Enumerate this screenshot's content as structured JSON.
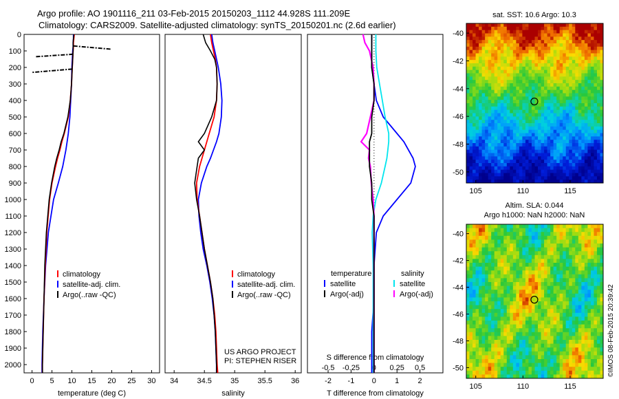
{
  "header": {
    "line1": "Argo profile: AO 1901116_211 03-Feb-2015 20150203_1112 44.928S 111.209E",
    "line2": "Climatology: CARS2009. Satellite-adjusted climatology: synTS_20150201.nc (2.6d earlier)"
  },
  "colors": {
    "climatology": "#ff0000",
    "satellite": "#0000ff",
    "argo": "#000000",
    "sat_salinity": "#00e5ee",
    "argo_salinity": "#ff00ff"
  },
  "chart_data": [
    {
      "type": "line",
      "panel": "temperature",
      "xlabel": "temperature (deg C)",
      "ylabel": "",
      "xlim": [
        -2,
        32
      ],
      "ylim": [
        2050,
        0
      ],
      "xticks": [
        "0",
        "5",
        "10",
        "15",
        "20",
        "25",
        "30"
      ],
      "yticks": [
        "0",
        "100",
        "200",
        "300",
        "400",
        "500",
        "600",
        "700",
        "800",
        "900",
        "1000",
        "1100",
        "1200",
        "1300",
        "1400",
        "1500",
        "1600",
        "1700",
        "1800",
        "1900",
        "2000"
      ],
      "legend": [
        "climatology",
        "satellite-adj. clim.",
        "Argo(..raw -QC)"
      ],
      "depth": [
        0,
        25,
        50,
        75,
        100,
        150,
        200,
        300,
        400,
        500,
        600,
        650,
        700,
        750,
        800,
        900,
        1000,
        1200,
        1400,
        1600,
        1800,
        2000,
        2050
      ],
      "series": [
        {
          "name": "climatology",
          "values": [
            10.6,
            10.5,
            10.4,
            10.4,
            10.3,
            10.2,
            10.1,
            9.9,
            9.6,
            9.1,
            8.1,
            7.5,
            7.0,
            6.4,
            5.9,
            5.0,
            4.4,
            3.7,
            3.3,
            3.0,
            2.8,
            2.6,
            2.6
          ]
        },
        {
          "name": "satellite-adj. clim.",
          "values": [
            10.4,
            10.4,
            10.3,
            10.3,
            10.2,
            10.1,
            10.0,
            9.9,
            9.7,
            9.5,
            9.1,
            8.8,
            8.5,
            8.1,
            7.7,
            6.6,
            5.4,
            4.1,
            3.4,
            3.0,
            2.7,
            2.5,
            2.5
          ]
        },
        {
          "name": "Argo(..raw -QC)",
          "values": [
            10.5,
            10.4,
            10.3,
            10.3,
            10.3,
            10.2,
            10.1,
            9.9,
            9.6,
            9.0,
            8.0,
            7.3,
            6.8,
            6.2,
            5.7,
            4.9,
            4.3,
            3.6,
            3.2,
            3.0,
            2.8,
            2.6,
            2.6
          ]
        }
      ],
      "spikes": [
        {
          "depth": [
            70,
            90
          ],
          "values": [
            10.4,
            20.0
          ]
        },
        {
          "depth": [
            120,
            135
          ],
          "values": [
            10.3,
            1.0
          ]
        },
        {
          "depth": [
            210,
            230
          ],
          "values": [
            10.1,
            0.0
          ]
        }
      ]
    },
    {
      "type": "line",
      "panel": "salinity",
      "xlabel": "salinity",
      "xlim": [
        33.85,
        36.1
      ],
      "ylim": [
        2050,
        0
      ],
      "xticks": [
        "34",
        "34.5",
        "35",
        "35.5",
        "36"
      ],
      "legend": [
        "climatology",
        "satellite-adj. clim.",
        "Argo(..raw -QC)"
      ],
      "annotation": [
        "US ARGO PROJECT",
        "PI: STEPHEN RISER"
      ],
      "depth": [
        0,
        50,
        100,
        150,
        200,
        300,
        400,
        500,
        600,
        650,
        700,
        750,
        800,
        900,
        1000,
        1100,
        1200,
        1300,
        1400,
        1500,
        1600,
        1700,
        1800,
        1900,
        2000,
        2050
      ],
      "series": [
        {
          "name": "climatology",
          "values": [
            34.6,
            34.62,
            34.65,
            34.68,
            34.7,
            34.71,
            34.7,
            34.66,
            34.58,
            34.54,
            34.5,
            34.46,
            34.42,
            34.37,
            34.38,
            34.42,
            34.46,
            34.5,
            34.55,
            34.6,
            34.64,
            34.67,
            34.69,
            34.7,
            34.71,
            34.72
          ]
        },
        {
          "name": "satellite-adj. clim.",
          "values": [
            34.62,
            34.64,
            34.67,
            34.7,
            34.73,
            34.77,
            34.79,
            34.78,
            34.74,
            34.7,
            34.65,
            34.6,
            34.54,
            34.45,
            34.4,
            34.41,
            34.44,
            34.48,
            34.54,
            34.59,
            34.63,
            34.66,
            34.68,
            34.69,
            34.7,
            34.7
          ]
        },
        {
          "name": "Argo(..raw -QC)",
          "values": [
            34.48,
            34.52,
            34.6,
            34.67,
            34.7,
            34.71,
            34.7,
            34.62,
            34.5,
            34.4,
            34.5,
            34.4,
            34.38,
            34.34,
            34.37,
            34.42,
            34.46,
            34.5,
            34.55,
            34.6,
            34.64,
            34.66,
            34.68,
            34.69,
            34.7,
            34.7
          ]
        }
      ]
    },
    {
      "type": "line",
      "panel": "difference",
      "xlabel": "T difference from climatology",
      "xlabel_top": "S difference from climatology",
      "xlim": [
        -2.9,
        3.0
      ],
      "ylim": [
        2050,
        0
      ],
      "xticks": [
        "-2",
        "-1",
        "0",
        "1",
        "2"
      ],
      "xticks_top": [
        "-0.5",
        "-0.25",
        "0",
        "0.25",
        "0.5"
      ],
      "legend_titles": [
        "temperature",
        "salinity"
      ],
      "legend": [
        "satellite",
        "Argo(-adj)",
        "satellite",
        "Argo(-adj)"
      ],
      "depth": [
        0,
        50,
        100,
        200,
        300,
        400,
        500,
        600,
        650,
        700,
        750,
        800,
        900,
        1000,
        1100,
        1200,
        1400,
        1600,
        1800,
        2000,
        2050
      ],
      "series": [
        {
          "name": "temperature satellite",
          "values": [
            -0.1,
            -0.1,
            -0.1,
            -0.1,
            0.0,
            0.1,
            0.4,
            1.0,
            1.3,
            1.5,
            1.7,
            1.8,
            1.6,
            1.0,
            0.4,
            0.1,
            0.0,
            0.0,
            -0.1,
            -0.1,
            -0.1
          ]
        },
        {
          "name": "temperature Argo(-adj)",
          "values": [
            -0.1,
            -0.1,
            -0.1,
            -0.1,
            0.0,
            0.0,
            -0.1,
            -0.1,
            -0.2,
            -0.2,
            -0.2,
            -0.2,
            -0.1,
            -0.1,
            0.0,
            0.0,
            0.0,
            0.0,
            0.0,
            0.0,
            0.0
          ]
        },
        {
          "name": "salinity satellite",
          "values": [
            0.02,
            0.02,
            0.02,
            0.03,
            0.06,
            0.09,
            0.12,
            0.16,
            0.16,
            0.15,
            0.14,
            0.12,
            0.08,
            0.02,
            -0.01,
            -0.02,
            -0.01,
            -0.01,
            -0.01,
            -0.01,
            -0.01
          ]
        },
        {
          "name": "salinity Argo(-adj)",
          "values": [
            -0.12,
            -0.1,
            -0.05,
            -0.01,
            0.0,
            0.0,
            -0.04,
            -0.08,
            -0.14,
            -0.05,
            -0.06,
            -0.04,
            -0.03,
            -0.01,
            0.0,
            0.0,
            0.0,
            0.0,
            0.0,
            0.0,
            0.0
          ]
        }
      ]
    },
    {
      "type": "heatmap",
      "panel": "SST map",
      "title": "sat. SST: 10.6 Argo: 10.3",
      "xlim": [
        104,
        118.5
      ],
      "ylim": [
        -50.8,
        -39.3
      ],
      "xticks": [
        "105",
        "110",
        "115"
      ],
      "yticks": [
        "-40",
        "-42",
        "-44",
        "-46",
        "-48",
        "-50"
      ],
      "marker": {
        "lon": 111.209,
        "lat": -44.928
      }
    },
    {
      "type": "heatmap",
      "panel": "SLA map",
      "title": "Altim. SLA: 0.044",
      "subtitle": "Argo h1000: NaN h2000: NaN",
      "xlim": [
        104,
        118.5
      ],
      "ylim": [
        -50.8,
        -39.3
      ],
      "xticks": [
        "105",
        "110",
        "115"
      ],
      "yticks": [
        "-40",
        "-42",
        "-44",
        "-46",
        "-48",
        "-50"
      ],
      "marker": {
        "lon": 111.209,
        "lat": -44.928
      }
    }
  ],
  "footer": {
    "stamp": "©IMOS 08-Feb-2015 20:39:42"
  }
}
